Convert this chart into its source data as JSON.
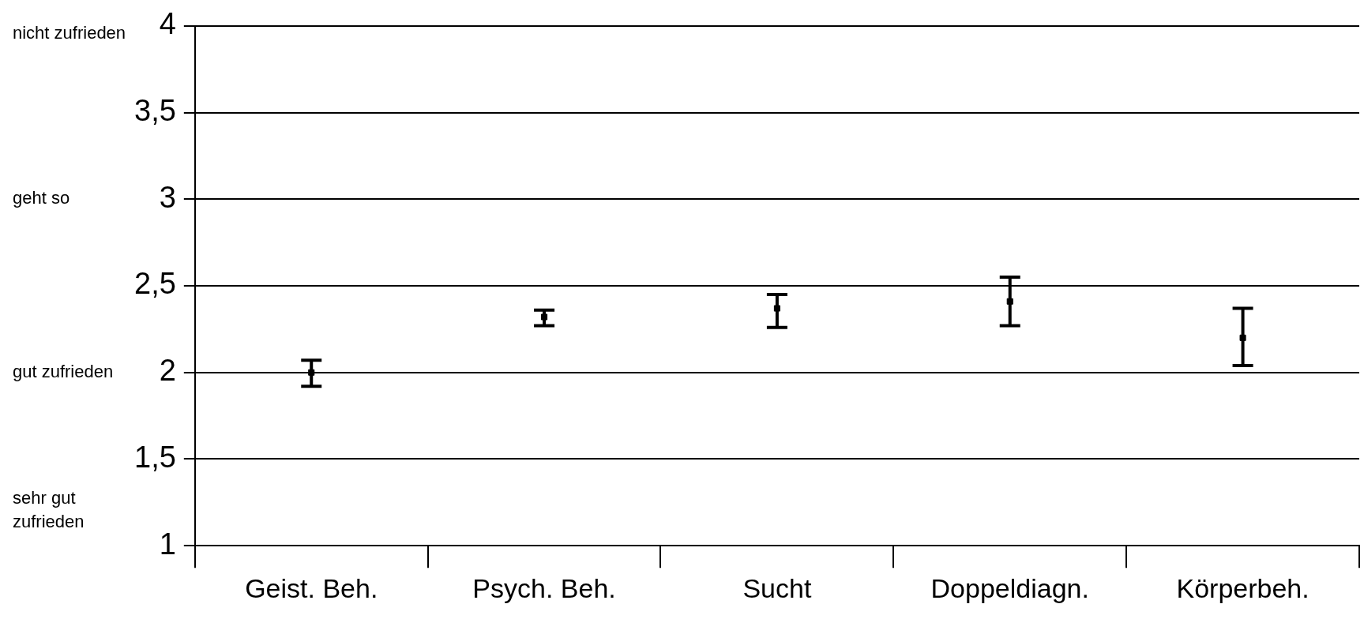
{
  "chart_data": {
    "type": "scatter",
    "categories": [
      "Geist. Beh.",
      "Psych. Beh.",
      "Sucht",
      "Doppeldiagn.",
      "Körperbeh."
    ],
    "series": [
      {
        "color": "#000000",
        "values": [
          2.0,
          2.32,
          2.37,
          2.41,
          2.2
        ],
        "errors": [
          [
            1.92,
            2.07
          ],
          [
            2.27,
            2.36
          ],
          [
            2.26,
            2.45
          ],
          [
            2.27,
            2.55
          ],
          [
            2.04,
            2.37
          ]
        ]
      }
    ],
    "ylim": [
      1,
      4
    ],
    "yticks": [
      1,
      {
        "value": 1.5,
        "label": "1,5"
      },
      2,
      {
        "value": 2.5,
        "label": "2,5"
      },
      3,
      {
        "value": 3.5,
        "label": "3,5"
      },
      4
    ],
    "grid": "y",
    "legend": false,
    "annotations": [
      "nicht zufrieden",
      "geht so",
      "gut zufrieden",
      "sehr gut zufrieden"
    ]
  }
}
